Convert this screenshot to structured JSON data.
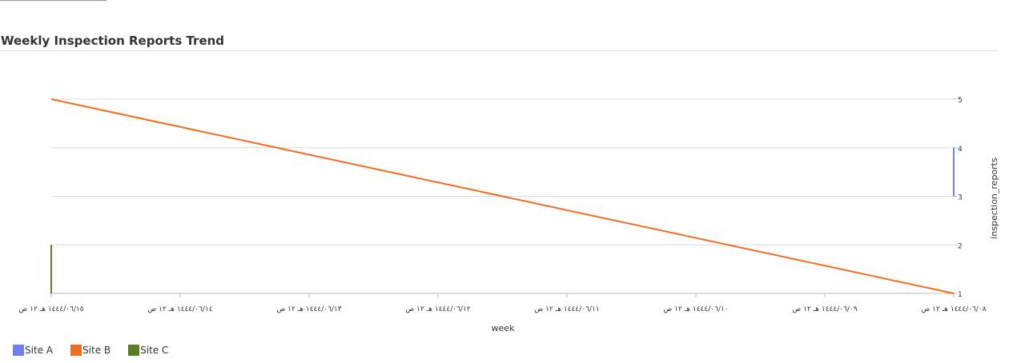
{
  "title": "Weekly Inspection Reports Trend",
  "chart_data": {
    "type": "line",
    "xlabel": "week",
    "ylabel": "inspection_reports",
    "y_axis_side": "right",
    "x_reversed": true,
    "ylim": [
      1,
      5
    ],
    "yticks": [
      1,
      2,
      3,
      4,
      5
    ],
    "grid": true,
    "legend_position": "bottom-left",
    "x_ticks": [
      "١٤٤٤/٠٦/١٥ هـ ١٢ ص",
      "١٤٤٤/٠٦/١٤ هـ ١٢ ص",
      "١٤٤٤/٠٦/١٣ هـ ١٢ ص",
      "١٤٤٤/٠٦/١٢ هـ ١٢ ص",
      "١٤٤٤/٠٦/١١ هـ ١٢ ص",
      "١٤٤٤/٠٦/١٠ هـ ١٢ ص",
      "١٤٤٤/٠٦/٠٩ هـ ١٢ ص",
      "١٤٤٤/٠٦/٠٨ هـ ١٢ ص"
    ],
    "series": [
      {
        "name": "Site A",
        "color": "#6f7ff0",
        "points": [
          {
            "x": "١٤٤٤/٠٦/٠٨ هـ ١٢ ص",
            "y": [
              3,
              4
            ]
          }
        ]
      },
      {
        "name": "Site B",
        "color": "#f36d1e",
        "points": [
          {
            "x": "١٤٤٤/٠٦/١٥ هـ ١٢ ص",
            "y": 5
          },
          {
            "x": "١٤٤٤/٠٦/٠٨ هـ ١٢ ص",
            "y": 1
          }
        ]
      },
      {
        "name": "Site C",
        "color": "#5c7f24",
        "points": [
          {
            "x": "١٤٤٤/٠٦/١٥ هـ ١٢ ص",
            "y": [
              1,
              2
            ]
          }
        ]
      }
    ]
  }
}
